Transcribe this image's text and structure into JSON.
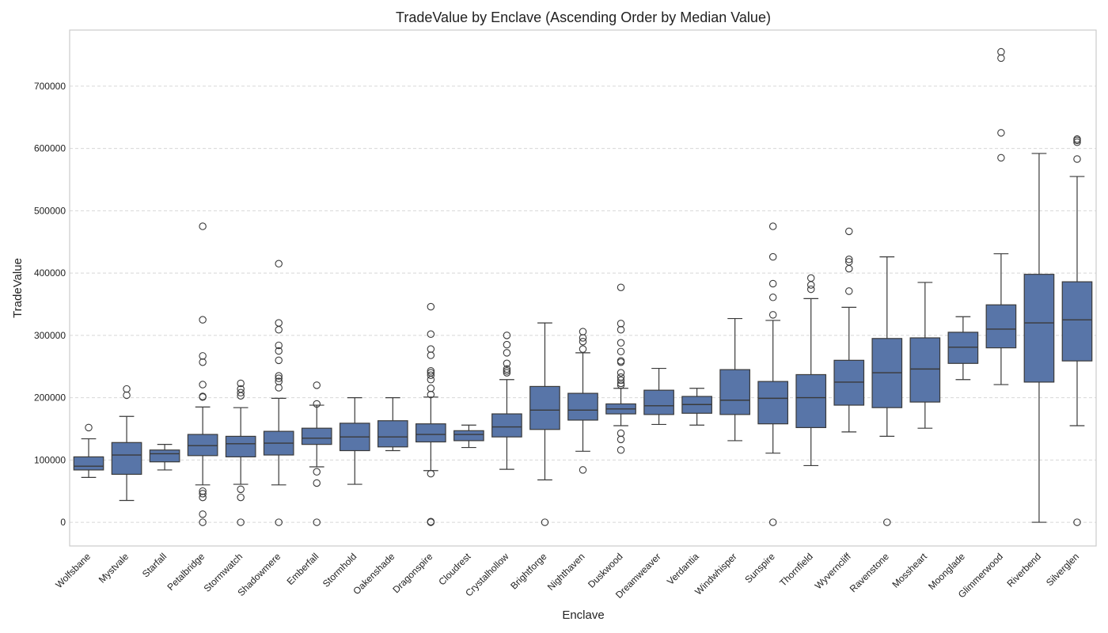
{
  "chart_data": {
    "type": "box",
    "title": "TradeValue by Enclave (Ascending Order by Median Value)",
    "xlabel": "Enclave",
    "ylabel": "TradeValue",
    "ylim": [
      -38000,
      790000
    ],
    "yticks": [
      0,
      100000,
      200000,
      300000,
      400000,
      500000,
      600000,
      700000
    ],
    "ytick_labels": [
      "0",
      "100000",
      "200000",
      "300000",
      "400000",
      "500000",
      "600000",
      "700000"
    ],
    "grid": true,
    "box_color": "#5875a8",
    "categories": [
      "Wolfsbane",
      "Mystvale",
      "Starfall",
      "Petalbridge",
      "Stormwatch",
      "Shadowmere",
      "Emberfall",
      "Stormhold",
      "Oakenshade",
      "Dragonspire",
      "Cloudrest",
      "Crystalhollow",
      "Brightforge",
      "Nighthaven",
      "Duskwood",
      "Dreamweaver",
      "Verdantia",
      "Windwhisper",
      "Sunspire",
      "Thornfield",
      "Wyverncliff",
      "Ravenstone",
      "Mossheart",
      "Moonglade",
      "Glimmerwood",
      "Riverbend",
      "Silverglen"
    ],
    "boxes": [
      {
        "whisker_low": 72000,
        "q1": 84000,
        "median": 90000,
        "q3": 105000,
        "whisker_high": 134000,
        "outliers": [
          152000
        ]
      },
      {
        "whisker_low": 35000,
        "q1": 77000,
        "median": 108000,
        "q3": 128000,
        "whisker_high": 170000,
        "outliers": [
          204000,
          214000
        ]
      },
      {
        "whisker_low": 84000,
        "q1": 97000,
        "median": 110000,
        "q3": 116000,
        "whisker_high": 125000,
        "outliers": []
      },
      {
        "whisker_low": 60000,
        "q1": 107000,
        "median": 123000,
        "q3": 141000,
        "whisker_high": 185000,
        "outliers": [
          0,
          13000,
          40000,
          46000,
          50000,
          201000,
          202000,
          221000,
          257000,
          267000,
          325000,
          475000
        ]
      },
      {
        "whisker_low": 61000,
        "q1": 105000,
        "median": 126000,
        "q3": 138000,
        "whisker_high": 184000,
        "outliers": [
          0,
          40000,
          53000,
          203000,
          208000,
          214000,
          223000
        ]
      },
      {
        "whisker_low": 60000,
        "q1": 108000,
        "median": 127000,
        "q3": 146000,
        "whisker_high": 199000,
        "outliers": [
          0,
          216000,
          226000,
          231000,
          235000,
          260000,
          275000,
          284000,
          309000,
          320000,
          415000
        ]
      },
      {
        "whisker_low": 89000,
        "q1": 125000,
        "median": 135000,
        "q3": 151000,
        "whisker_high": 188000,
        "outliers": [
          0,
          63000,
          81000,
          190000,
          220000
        ]
      },
      {
        "whisker_low": 61000,
        "q1": 115000,
        "median": 137000,
        "q3": 159000,
        "whisker_high": 200000,
        "outliers": []
      },
      {
        "whisker_low": 115000,
        "q1": 121000,
        "median": 137000,
        "q3": 163000,
        "whisker_high": 200000,
        "outliers": []
      },
      {
        "whisker_low": 83000,
        "q1": 129000,
        "median": 141000,
        "q3": 158000,
        "whisker_high": 201000,
        "outliers": [
          0,
          1000,
          78000,
          205000,
          215000,
          229000,
          236000,
          240000,
          243000,
          268000,
          278000,
          302000,
          346000
        ]
      },
      {
        "whisker_low": 120000,
        "q1": 131000,
        "median": 141000,
        "q3": 147000,
        "whisker_high": 156000,
        "outliers": []
      },
      {
        "whisker_low": 85000,
        "q1": 137000,
        "median": 153000,
        "q3": 174000,
        "whisker_high": 229000,
        "outliers": [
          240000,
          243000,
          246000,
          255000,
          272000,
          285000,
          300000
        ]
      },
      {
        "whisker_low": 68000,
        "q1": 149000,
        "median": 180000,
        "q3": 218000,
        "whisker_high": 320000,
        "outliers": [
          0
        ]
      },
      {
        "whisker_low": 114000,
        "q1": 164000,
        "median": 180000,
        "q3": 207000,
        "whisker_high": 272000,
        "outliers": [
          84000,
          278000,
          290000,
          296000,
          306000
        ]
      },
      {
        "whisker_low": 155000,
        "q1": 174000,
        "median": 182000,
        "q3": 190000,
        "whisker_high": 215000,
        "outliers": [
          116000,
          133000,
          143000,
          220000,
          223000,
          228000,
          233000,
          240000,
          257000,
          259000,
          274000,
          288000,
          309000,
          319000,
          377000
        ]
      },
      {
        "whisker_low": 157000,
        "q1": 173000,
        "median": 187000,
        "q3": 212000,
        "whisker_high": 247000,
        "outliers": []
      },
      {
        "whisker_low": 156000,
        "q1": 175000,
        "median": 189000,
        "q3": 202000,
        "whisker_high": 215000,
        "outliers": []
      },
      {
        "whisker_low": 131000,
        "q1": 173000,
        "median": 196000,
        "q3": 245000,
        "whisker_high": 327000,
        "outliers": []
      },
      {
        "whisker_low": 111000,
        "q1": 158000,
        "median": 199000,
        "q3": 226000,
        "whisker_high": 324000,
        "outliers": [
          0,
          333000,
          361000,
          383000,
          426000,
          475000
        ]
      },
      {
        "whisker_low": 91000,
        "q1": 152000,
        "median": 200000,
        "q3": 237000,
        "whisker_high": 359000,
        "outliers": [
          374000,
          381000,
          392000
        ]
      },
      {
        "whisker_low": 145000,
        "q1": 188000,
        "median": 225000,
        "q3": 260000,
        "whisker_high": 345000,
        "outliers": [
          371000,
          407000,
          418000,
          422000,
          467000
        ]
      },
      {
        "whisker_low": 138000,
        "q1": 184000,
        "median": 240000,
        "q3": 295000,
        "whisker_high": 426000,
        "outliers": [
          0
        ]
      },
      {
        "whisker_low": 151000,
        "q1": 193000,
        "median": 246000,
        "q3": 296000,
        "whisker_high": 385000,
        "outliers": []
      },
      {
        "whisker_low": 229000,
        "q1": 255000,
        "median": 281000,
        "q3": 305000,
        "whisker_high": 330000,
        "outliers": []
      },
      {
        "whisker_low": 221000,
        "q1": 280000,
        "median": 310000,
        "q3": 349000,
        "whisker_high": 431000,
        "outliers": [
          585000,
          625000,
          745000,
          755000
        ]
      },
      {
        "whisker_low": 0,
        "q1": 225000,
        "median": 320000,
        "q3": 398000,
        "whisker_high": 592000,
        "outliers": []
      },
      {
        "whisker_low": 155000,
        "q1": 259000,
        "median": 325000,
        "q3": 386000,
        "whisker_high": 555000,
        "outliers": [
          0,
          583000,
          610000,
          613000,
          615000
        ]
      }
    ]
  }
}
